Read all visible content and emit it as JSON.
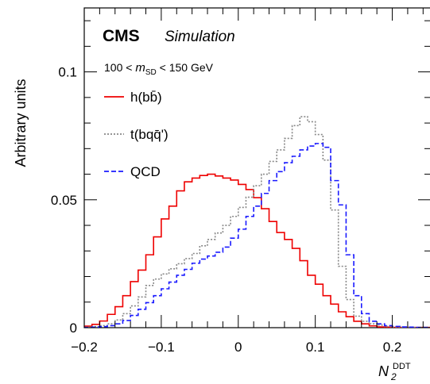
{
  "chart_data": {
    "type": "line",
    "title": "CMS",
    "subtitle": "Simulation",
    "annotation": {
      "prefix": "100 < ",
      "var": "m",
      "var_sub": "SD",
      "suffix": " < 150 GeV"
    },
    "ylabel": "Arbitrary units",
    "xlabel": {
      "main": "N",
      "sub": "2",
      "sup": "DDT"
    },
    "xlim": [
      -0.2,
      0.25
    ],
    "ylim": [
      0,
      0.125
    ],
    "x_ticks": [
      {
        "value": -0.2,
        "label": "−0.2"
      },
      {
        "value": -0.1,
        "label": "−0.1"
      },
      {
        "value": 0,
        "label": "0"
      },
      {
        "value": 0.1,
        "label": "0.1"
      },
      {
        "value": 0.2,
        "label": "0.2"
      }
    ],
    "y_ticks": [
      {
        "value": 0,
        "label": "0"
      },
      {
        "value": 0.05,
        "label": "0.05"
      },
      {
        "value": 0.1,
        "label": "0.1"
      }
    ],
    "bin_width": 0.01,
    "bin_low_edges": [
      -0.21,
      -0.2,
      -0.19,
      -0.18,
      -0.17,
      -0.16,
      -0.15,
      -0.14,
      -0.13,
      -0.12,
      -0.11,
      -0.1,
      -0.09,
      -0.08,
      -0.07,
      -0.06,
      -0.05,
      -0.04,
      -0.03,
      -0.02,
      -0.01,
      0,
      0.01,
      0.02,
      0.03,
      0.04,
      0.05,
      0.06,
      0.07,
      0.08,
      0.09,
      0.1,
      0.11,
      0.12,
      0.13,
      0.14,
      0.15,
      0.16,
      0.17,
      0.18,
      0.19,
      0.2,
      0.21,
      0.22,
      0.23,
      0.24
    ],
    "legend_position": "top-left",
    "series": [
      {
        "name": "h(bb̄)",
        "color": "#ee0000",
        "style": "solid",
        "values": [
          0.0003,
          0.0006,
          0.0013,
          0.0026,
          0.0052,
          0.0082,
          0.0125,
          0.018,
          0.0225,
          0.0285,
          0.0355,
          0.0425,
          0.0475,
          0.0535,
          0.057,
          0.0585,
          0.0595,
          0.06,
          0.0593,
          0.0585,
          0.0577,
          0.056,
          0.054,
          0.0508,
          0.0465,
          0.0415,
          0.0372,
          0.0345,
          0.031,
          0.0262,
          0.0205,
          0.017,
          0.0125,
          0.0092,
          0.0062,
          0.0043,
          0.0025,
          0.0015,
          0.0007,
          0.0003,
          0.0002,
          0.0001,
          0.0001,
          0.0001,
          0.0001,
          0.0001
        ]
      },
      {
        "name": "t(bqq̄')",
        "color": "#888888",
        "style": "dotted",
        "values": [
          0.0001,
          0.0002,
          0.0004,
          0.0008,
          0.0015,
          0.003,
          0.0055,
          0.0085,
          0.012,
          0.0165,
          0.019,
          0.021,
          0.023,
          0.025,
          0.027,
          0.029,
          0.032,
          0.0345,
          0.037,
          0.04,
          0.0435,
          0.047,
          0.051,
          0.0555,
          0.06,
          0.065,
          0.0695,
          0.074,
          0.079,
          0.0825,
          0.0805,
          0.0755,
          0.0655,
          0.046,
          0.024,
          0.011,
          0.0045,
          0.0025,
          0.0015,
          0.001,
          0.0005,
          0.0003,
          0.0002,
          0.0001,
          0.0001,
          0.0001
        ]
      },
      {
        "name": "QCD",
        "color": "#1a1aff",
        "style": "dashed",
        "values": [
          0.0,
          0.0001,
          0.0002,
          0.0004,
          0.0008,
          0.0015,
          0.0028,
          0.0048,
          0.0072,
          0.0098,
          0.0125,
          0.0152,
          0.0178,
          0.0205,
          0.0228,
          0.0252,
          0.0268,
          0.028,
          0.0295,
          0.0315,
          0.035,
          0.0385,
          0.0435,
          0.0475,
          0.0525,
          0.0575,
          0.061,
          0.0645,
          0.067,
          0.0695,
          0.071,
          0.072,
          0.0705,
          0.0575,
          0.048,
          0.0285,
          0.0125,
          0.0055,
          0.0025,
          0.0015,
          0.0008,
          0.0005,
          0.0003,
          0.0002,
          0.0001,
          0.0001
        ]
      }
    ]
  }
}
